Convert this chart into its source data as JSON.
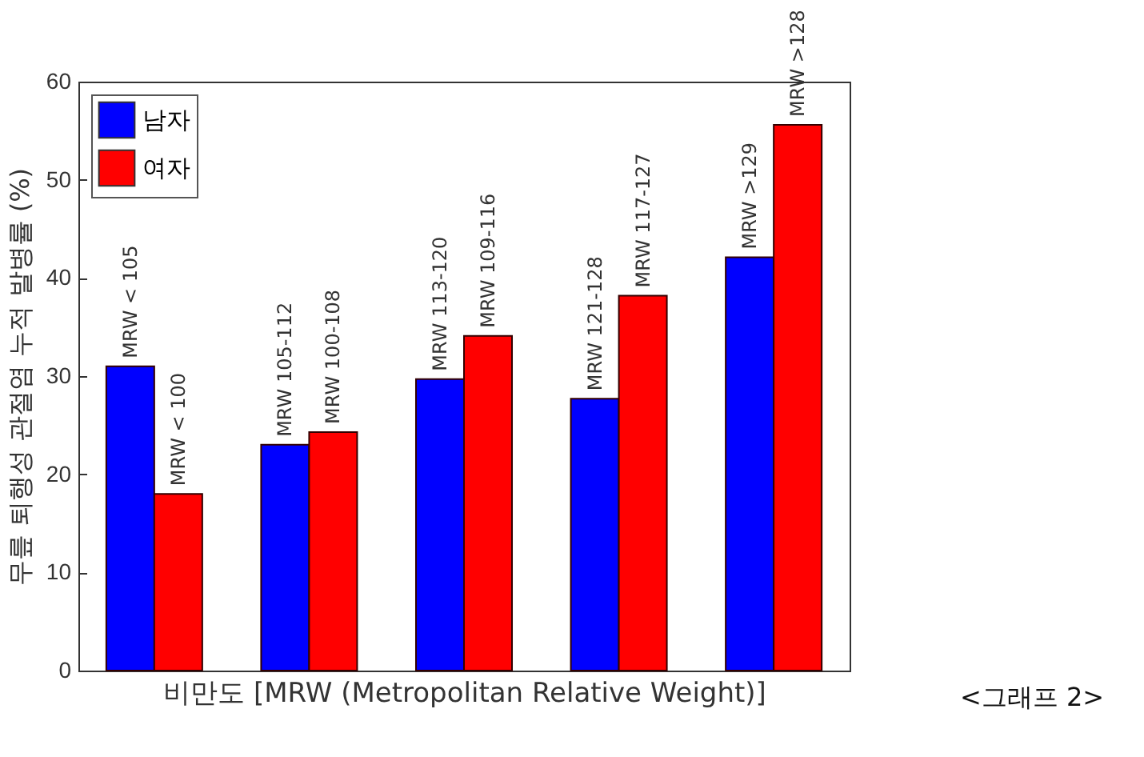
{
  "chart_data": {
    "type": "bar",
    "xlabel": "비만도 [MRW (Metropolitan Relative Weight)]",
    "ylabel": "무릎 퇴행성 관절염 누적 발병률 (%)",
    "categories": [
      null,
      null,
      null,
      null,
      null
    ],
    "series": [
      {
        "name": "남자",
        "color": "#0000ff",
        "values": [
          31,
          23,
          29.7,
          27.7,
          42.1
        ],
        "value_labels": [
          "MRW < 105",
          "MRW 105-112",
          "MRW 113-120",
          "MRW 121-128",
          "MRW >129"
        ]
      },
      {
        "name": "여자",
        "color": "#ff0000",
        "values": [
          18,
          24.3,
          34.1,
          38.2,
          55.6
        ],
        "value_labels": [
          "MRW < 100",
          "MRW 100-108",
          "MRW 109-116",
          "MRW 117-127",
          "MRW >128"
        ]
      }
    ],
    "ylim": [
      0,
      60
    ],
    "yticks": [
      0,
      10,
      20,
      30,
      40,
      50,
      60
    ],
    "legend": "top left",
    "grid": false,
    "annotations": [
      "<그래프 2>"
    ]
  }
}
